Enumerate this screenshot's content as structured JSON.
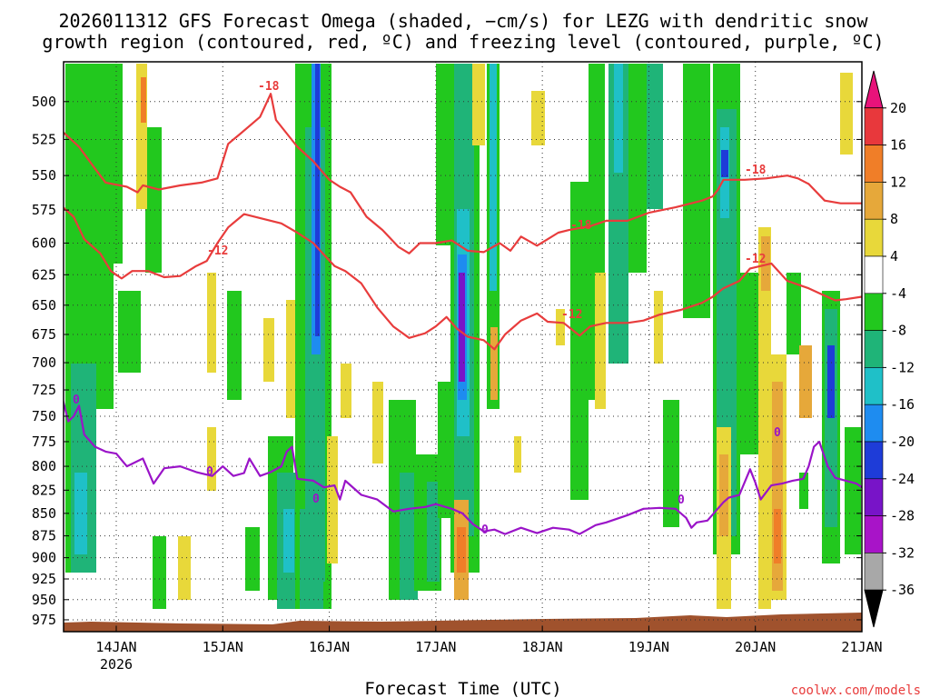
{
  "chart_data": {
    "type": "heatmap",
    "title_lines": [
      "2026011312 GFS Forecast Omega (shaded, −cm/s) for LEZG with dendritic snow",
      "growth region (contoured, red, ºC) and freezing level (contoured, purple, ºC)"
    ],
    "xlabel": "Forecast Time (UTC)",
    "credit": "coolwx.com/models",
    "x_ticks": [
      {
        "t": 0,
        "label": "14JAN",
        "sub": "2026"
      },
      {
        "t": 1,
        "label": "15JAN",
        "sub": ""
      },
      {
        "t": 2,
        "label": "16JAN",
        "sub": ""
      },
      {
        "t": 3,
        "label": "17JAN",
        "sub": ""
      },
      {
        "t": 4,
        "label": "18JAN",
        "sub": ""
      },
      {
        "t": 5,
        "label": "19JAN",
        "sub": ""
      },
      {
        "t": 6,
        "label": "20JAN",
        "sub": ""
      },
      {
        "t": 7,
        "label": "21JAN",
        "sub": ""
      }
    ],
    "xlim": [
      -0.5,
      7.0
    ],
    "y_ticks": [
      500,
      525,
      550,
      575,
      600,
      625,
      650,
      675,
      700,
      725,
      750,
      775,
      800,
      825,
      850,
      875,
      900,
      925,
      950,
      975
    ],
    "ylim": [
      475,
      990
    ],
    "y_scale": "log",
    "grid": true,
    "colorbar": {
      "ticks": [
        "20",
        "16",
        "12",
        "8",
        "4",
        "-4",
        "-8",
        "-12",
        "-16",
        "-20",
        "-24",
        "-28",
        "-32",
        "-36"
      ],
      "colors": [
        "#e8137a",
        "#e8383c",
        "#f07e28",
        "#e6a83a",
        "#e8d83a",
        "#ffffff",
        "#22c81e",
        "#1fb478",
        "#1fc0c8",
        "#1e8cf0",
        "#1e3cd8",
        "#7814c8",
        "#a814c8",
        "#a8a8a8",
        "#000000"
      ]
    },
    "isotherm_labels": {
      "minus18": "-18",
      "minus12": "-12",
      "freezing": "0"
    },
    "series": [
      {
        "name": "-18",
        "color": "#e83c3c",
        "points": [
          [
            -0.5,
            520
          ],
          [
            -0.35,
            530
          ],
          [
            -0.2,
            545
          ],
          [
            -0.1,
            555
          ],
          [
            0.1,
            558
          ],
          [
            0.2,
            562
          ],
          [
            0.25,
            557
          ],
          [
            0.4,
            560
          ],
          [
            0.6,
            557
          ],
          [
            0.8,
            555
          ],
          [
            0.95,
            552
          ],
          [
            1.0,
            540
          ],
          [
            1.05,
            528
          ],
          [
            1.15,
            522
          ],
          [
            1.25,
            516
          ],
          [
            1.35,
            510
          ],
          [
            1.45,
            495
          ],
          [
            1.5,
            512
          ],
          [
            1.7,
            530
          ],
          [
            1.85,
            540
          ],
          [
            2.0,
            553
          ],
          [
            2.1,
            558
          ],
          [
            2.2,
            562
          ],
          [
            2.35,
            580
          ],
          [
            2.5,
            590
          ],
          [
            2.65,
            603
          ],
          [
            2.75,
            608
          ],
          [
            2.85,
            600
          ],
          [
            3.0,
            600
          ],
          [
            3.15,
            598
          ],
          [
            3.3,
            606
          ],
          [
            3.45,
            607
          ],
          [
            3.6,
            600
          ],
          [
            3.7,
            606
          ],
          [
            3.8,
            595
          ],
          [
            3.95,
            602
          ],
          [
            4.05,
            597
          ],
          [
            4.15,
            592
          ],
          [
            4.25,
            590
          ],
          [
            4.45,
            587
          ],
          [
            4.6,
            583
          ],
          [
            4.8,
            583
          ],
          [
            5.0,
            577
          ],
          [
            5.25,
            573
          ],
          [
            5.5,
            568
          ],
          [
            5.6,
            565
          ],
          [
            5.65,
            560
          ],
          [
            5.7,
            553
          ],
          [
            5.9,
            553
          ],
          [
            6.1,
            552
          ],
          [
            6.3,
            550
          ],
          [
            6.4,
            552
          ],
          [
            6.5,
            556
          ],
          [
            6.65,
            568
          ],
          [
            6.8,
            570
          ],
          [
            7.0,
            570
          ]
        ]
      },
      {
        "name": "-12",
        "color": "#e83c3c",
        "points": [
          [
            -0.5,
            573
          ],
          [
            -0.4,
            580
          ],
          [
            -0.3,
            597
          ],
          [
            -0.15,
            608
          ],
          [
            -0.05,
            622
          ],
          [
            0.05,
            628
          ],
          [
            0.15,
            622
          ],
          [
            0.3,
            622
          ],
          [
            0.45,
            627
          ],
          [
            0.6,
            626
          ],
          [
            0.75,
            618
          ],
          [
            0.85,
            614
          ],
          [
            0.95,
            600
          ],
          [
            1.05,
            588
          ],
          [
            1.2,
            578
          ],
          [
            1.4,
            582
          ],
          [
            1.55,
            585
          ],
          [
            1.7,
            592
          ],
          [
            1.85,
            600
          ],
          [
            1.95,
            609
          ],
          [
            2.05,
            618
          ],
          [
            2.15,
            622
          ],
          [
            2.3,
            632
          ],
          [
            2.45,
            652
          ],
          [
            2.6,
            668
          ],
          [
            2.75,
            678
          ],
          [
            2.9,
            674
          ],
          [
            3.0,
            668
          ],
          [
            3.1,
            660
          ],
          [
            3.2,
            670
          ],
          [
            3.3,
            677
          ],
          [
            3.45,
            680
          ],
          [
            3.55,
            688
          ],
          [
            3.65,
            675
          ],
          [
            3.8,
            663
          ],
          [
            3.95,
            657
          ],
          [
            4.05,
            664
          ],
          [
            4.2,
            665
          ],
          [
            4.35,
            676
          ],
          [
            4.45,
            668
          ],
          [
            4.6,
            665
          ],
          [
            4.8,
            665
          ],
          [
            4.95,
            663
          ],
          [
            5.1,
            658
          ],
          [
            5.3,
            654
          ],
          [
            5.5,
            648
          ],
          [
            5.6,
            643
          ],
          [
            5.7,
            636
          ],
          [
            5.85,
            630
          ],
          [
            5.95,
            620
          ],
          [
            6.05,
            618
          ],
          [
            6.15,
            616
          ],
          [
            6.3,
            630
          ],
          [
            6.5,
            636
          ],
          [
            6.6,
            640
          ],
          [
            6.75,
            646
          ],
          [
            6.85,
            645
          ],
          [
            7.0,
            643
          ]
        ]
      },
      {
        "name": "0",
        "color": "#9a14c8",
        "points": [
          [
            -0.5,
            735
          ],
          [
            -0.45,
            755
          ],
          [
            -0.4,
            750
          ],
          [
            -0.35,
            740
          ],
          [
            -0.3,
            768
          ],
          [
            -0.2,
            780
          ],
          [
            -0.1,
            785
          ],
          [
            0.0,
            787
          ],
          [
            0.1,
            800
          ],
          [
            0.25,
            792
          ],
          [
            0.35,
            818
          ],
          [
            0.45,
            802
          ],
          [
            0.6,
            800
          ],
          [
            0.75,
            806
          ],
          [
            0.9,
            810
          ],
          [
            1.0,
            800
          ],
          [
            1.1,
            810
          ],
          [
            1.2,
            807
          ],
          [
            1.25,
            792
          ],
          [
            1.35,
            810
          ],
          [
            1.45,
            806
          ],
          [
            1.55,
            800
          ],
          [
            1.6,
            785
          ],
          [
            1.65,
            780
          ],
          [
            1.7,
            813
          ],
          [
            1.85,
            815
          ],
          [
            1.95,
            822
          ],
          [
            2.05,
            820
          ],
          [
            2.1,
            835
          ],
          [
            2.15,
            815
          ],
          [
            2.3,
            830
          ],
          [
            2.45,
            835
          ],
          [
            2.6,
            848
          ],
          [
            2.75,
            845
          ],
          [
            2.9,
            843
          ],
          [
            3.0,
            840
          ],
          [
            3.15,
            845
          ],
          [
            3.25,
            850
          ],
          [
            3.35,
            862
          ],
          [
            3.45,
            870
          ],
          [
            3.55,
            868
          ],
          [
            3.65,
            873
          ],
          [
            3.8,
            866
          ],
          [
            3.95,
            872
          ],
          [
            4.1,
            866
          ],
          [
            4.25,
            868
          ],
          [
            4.35,
            873
          ],
          [
            4.5,
            863
          ],
          [
            4.6,
            860
          ],
          [
            4.8,
            852
          ],
          [
            4.95,
            845
          ],
          [
            5.1,
            844
          ],
          [
            5.25,
            845
          ],
          [
            5.35,
            855
          ],
          [
            5.4,
            866
          ],
          [
            5.45,
            860
          ],
          [
            5.55,
            858
          ],
          [
            5.7,
            838
          ],
          [
            5.75,
            833
          ],
          [
            5.85,
            830
          ],
          [
            5.95,
            803
          ],
          [
            6.0,
            817
          ],
          [
            6.05,
            835
          ],
          [
            6.15,
            820
          ],
          [
            6.25,
            818
          ],
          [
            6.35,
            815
          ],
          [
            6.45,
            813
          ],
          [
            6.5,
            800
          ],
          [
            6.55,
            780
          ],
          [
            6.6,
            775
          ],
          [
            6.68,
            800
          ],
          [
            6.75,
            812
          ],
          [
            6.85,
            815
          ],
          [
            6.95,
            818
          ],
          [
            7.0,
            822
          ]
        ]
      }
    ]
  }
}
